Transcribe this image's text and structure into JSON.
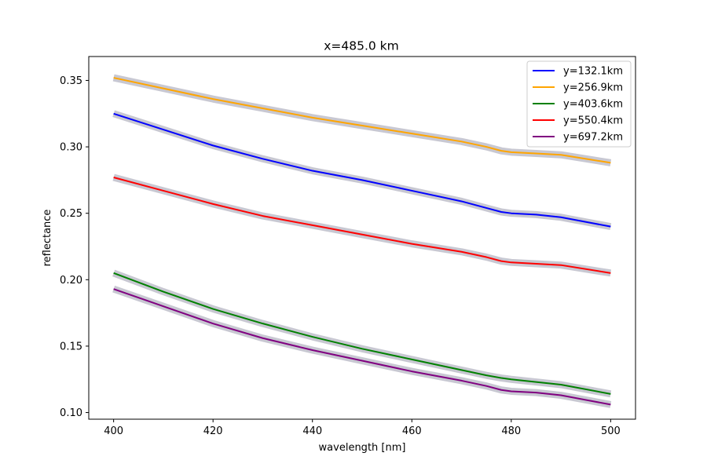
{
  "chart_data": {
    "type": "line",
    "title": "x=485.0 km",
    "xlabel": "wavelength [nm]",
    "ylabel": "reflectance",
    "xlim": [
      395,
      505
    ],
    "ylim": [
      0.095,
      0.368
    ],
    "xticks": [
      400,
      420,
      440,
      460,
      480,
      500
    ],
    "xtick_labels": [
      "400",
      "420",
      "440",
      "460",
      "480",
      "500"
    ],
    "yticks": [
      0.1,
      0.15,
      0.2,
      0.25,
      0.3,
      0.35
    ],
    "ytick_labels": [
      "0.10",
      "0.15",
      "0.20",
      "0.25",
      "0.30",
      "0.35"
    ],
    "grid": false,
    "legend_position": "top-right",
    "uncertainty_band_color": "#c8c8d2",
    "x": [
      400,
      410,
      420,
      430,
      440,
      450,
      460,
      470,
      475,
      478,
      480,
      485,
      490,
      500
    ],
    "series": [
      {
        "name": "y=132.1km",
        "color": "#0000ff",
        "values": [
          0.325,
          0.313,
          0.301,
          0.291,
          0.282,
          0.275,
          0.267,
          0.259,
          0.254,
          0.251,
          0.25,
          0.249,
          0.247,
          0.24
        ]
      },
      {
        "name": "y=256.9km",
        "color": "#ffa500",
        "values": [
          0.352,
          0.344,
          0.336,
          0.329,
          0.322,
          0.316,
          0.31,
          0.304,
          0.3,
          0.297,
          0.296,
          0.295,
          0.294,
          0.288
        ]
      },
      {
        "name": "y=403.6km",
        "color": "#008000",
        "values": [
          0.205,
          0.191,
          0.178,
          0.167,
          0.157,
          0.148,
          0.14,
          0.132,
          0.128,
          0.126,
          0.125,
          0.123,
          0.121,
          0.114
        ]
      },
      {
        "name": "y=550.4km",
        "color": "#ff0000",
        "values": [
          0.277,
          0.267,
          0.257,
          0.248,
          0.241,
          0.234,
          0.227,
          0.221,
          0.217,
          0.214,
          0.213,
          0.212,
          0.211,
          0.205
        ]
      },
      {
        "name": "y=697.2km",
        "color": "#800080",
        "values": [
          0.193,
          0.18,
          0.167,
          0.156,
          0.147,
          0.139,
          0.131,
          0.124,
          0.12,
          0.117,
          0.116,
          0.115,
          0.113,
          0.106
        ]
      }
    ]
  }
}
